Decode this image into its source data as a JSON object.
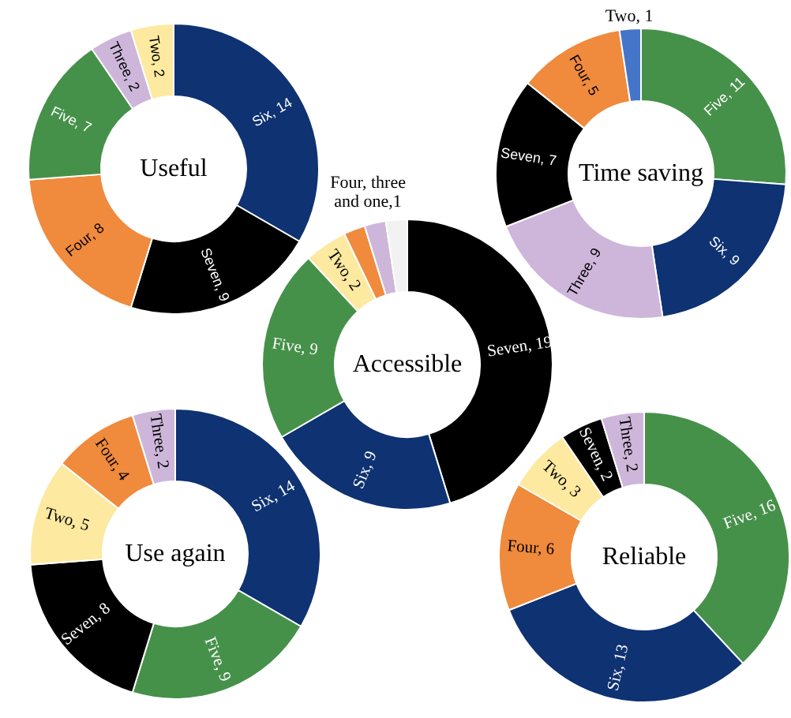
{
  "chart_data": [
    {
      "type": "donut",
      "title": "Useful",
      "categories": [
        null,
        null,
        null,
        null,
        null,
        null
      ],
      "values": [
        14,
        9,
        8,
        7,
        2,
        2
      ],
      "colors": [
        "#0e3272",
        "#000000",
        "#f08a3c",
        "#46914a",
        "#cdb6da",
        "#fde9a0"
      ],
      "value_labels": [
        "Six, 14",
        "Seven, 9",
        "Four, 8",
        "Five, 7",
        "Three, 2",
        "Two, 2"
      ]
    },
    {
      "type": "donut",
      "title": "Time saving",
      "categories": [
        null,
        null,
        null,
        null,
        null,
        null
      ],
      "values": [
        11,
        9,
        9,
        7,
        5,
        1
      ],
      "colors": [
        "#46914a",
        "#0e3272",
        "#cdb6da",
        "#000000",
        "#f08a3c",
        "#4575c9"
      ],
      "value_labels": [
        "Five, 11",
        "Six, 9",
        "Three, 9",
        "Seven, 7",
        "Four, 5",
        "Two, 1"
      ]
    },
    {
      "type": "donut",
      "title": "Accessible",
      "categories": [
        null,
        null,
        null,
        null,
        null,
        null,
        null
      ],
      "values": [
        19,
        9,
        9,
        2,
        1,
        1,
        1
      ],
      "colors": [
        "#000000",
        "#0e3272",
        "#46914a",
        "#fde9a0",
        "#f08a3c",
        "#cdb6da",
        "#f2f2f2"
      ],
      "value_labels": [
        "Seven, 19",
        "Six, 9",
        "Five, 9",
        "Two, 2",
        null,
        null,
        null
      ],
      "annotations": [
        "Four, three and one,1"
      ]
    },
    {
      "type": "donut",
      "title": "Use again",
      "categories": [
        null,
        null,
        null,
        null,
        null,
        null
      ],
      "values": [
        14,
        9,
        8,
        5,
        4,
        2
      ],
      "colors": [
        "#0e3272",
        "#46914a",
        "#000000",
        "#fde9a0",
        "#f08a3c",
        "#cdb6da"
      ],
      "value_labels": [
        "Six, 14",
        "Five, 9",
        "Seven, 8",
        "Two, 5",
        "Four, 4",
        "Three, 2"
      ]
    },
    {
      "type": "donut",
      "title": "Reliable",
      "categories": [
        null,
        null,
        null,
        null,
        null,
        null
      ],
      "values": [
        16,
        13,
        6,
        3,
        2,
        2
      ],
      "colors": [
        "#46914a",
        "#0e3272",
        "#f08a3c",
        "#fde9a0",
        "#000000",
        "#cdb6da"
      ],
      "value_labels": [
        "Five, 16",
        "Six, 13",
        "Four, 6",
        "Two, 3",
        "Seven, 2",
        "Three, 2"
      ]
    }
  ]
}
